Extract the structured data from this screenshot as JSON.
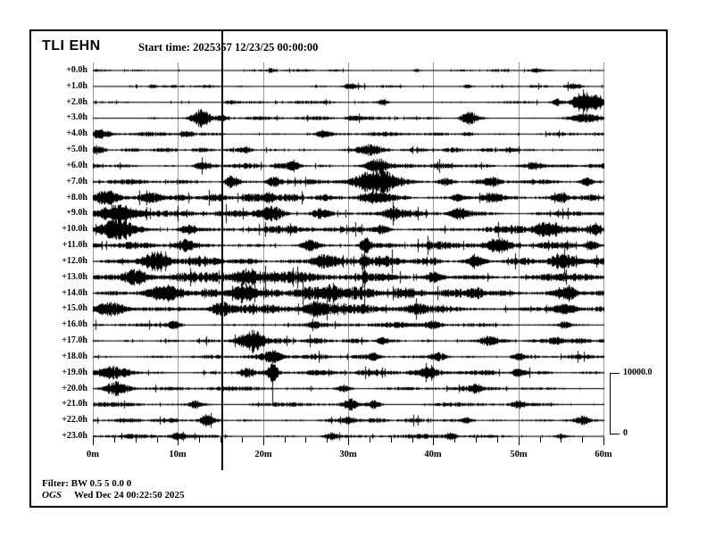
{
  "header": {
    "station": "TLI EHN",
    "start_time": "Start time: 2025357 12/23/25 00:00:00"
  },
  "footer": {
    "filter": "Filter: BW 0.5 5 0.0 0",
    "agency": "OGS",
    "timestamp": "Wed Dec 24 00:22:50 2025"
  },
  "scale_bar": {
    "max": "10000.0",
    "min": "0"
  },
  "colors": {
    "trace": "#000000",
    "grid": "#9a9a9a",
    "marker": "#000000"
  },
  "chart_data": {
    "type": "line",
    "title": "TLI EHN helicorder (24 hourly traces)",
    "x_axis": {
      "ticks": [
        "0m",
        "10m",
        "20m",
        "30m",
        "40m",
        "50m",
        "60m"
      ],
      "tick_minutes": [
        0,
        10,
        20,
        30,
        40,
        50,
        60
      ],
      "minor_tick_step_minutes": 2.5,
      "range_minutes": [
        0,
        60
      ]
    },
    "y_axis": {
      "hours_per_row": 1,
      "rows_total": 24
    },
    "marker_line_minutes": 15.1,
    "amplitude_scale": {
      "max": 10000.0,
      "min": 0
    },
    "rows": [
      {
        "label": "+0.0h",
        "base": 1.0,
        "events": [
          {
            "t": 21,
            "w": 0.3,
            "a": 1.5
          },
          {
            "t": 38,
            "w": 0.3,
            "a": 1.2
          },
          {
            "t": 52,
            "w": 0.4,
            "a": 1.2
          }
        ]
      },
      {
        "label": "+1.0h",
        "base": 1.1,
        "events": [
          {
            "t": 7,
            "w": 0.3,
            "a": 1.5
          },
          {
            "t": 30,
            "w": 0.4,
            "a": 1.5
          },
          {
            "t": 44,
            "w": 0.3,
            "a": 1.5
          },
          {
            "t": 56.5,
            "w": 0.6,
            "a": 2
          }
        ]
      },
      {
        "label": "+2.0h",
        "base": 1.2,
        "events": [
          {
            "t": 16,
            "w": 0.5,
            "a": 1.5
          },
          {
            "t": 34,
            "w": 0.4,
            "a": 2
          },
          {
            "t": 54.5,
            "w": 0.4,
            "a": 2.5
          },
          {
            "t": 57.5,
            "w": 0.7,
            "a": 10
          },
          {
            "t": 59.3,
            "w": 0.5,
            "a": 7
          }
        ]
      },
      {
        "label": "+3.0h",
        "base": 1.4,
        "events": [
          {
            "t": 12.7,
            "w": 0.8,
            "a": 7
          },
          {
            "t": 15.2,
            "w": 0.4,
            "a": 2.5
          },
          {
            "t": 30.5,
            "w": 0.5,
            "a": 2
          },
          {
            "t": 44.2,
            "w": 0.7,
            "a": 5
          },
          {
            "t": 57.8,
            "w": 1.5,
            "a": 3.5
          }
        ]
      },
      {
        "label": "+4.0h",
        "base": 1.7,
        "events": [
          {
            "t": 0.8,
            "w": 0.8,
            "a": 3
          },
          {
            "t": 11,
            "w": 0.5,
            "a": 2.5
          },
          {
            "t": 27,
            "w": 0.5,
            "a": 2
          },
          {
            "t": 44,
            "w": 0.5,
            "a": 2
          }
        ]
      },
      {
        "label": "+5.0h",
        "base": 1.7,
        "events": [
          {
            "t": 0.5,
            "w": 0.6,
            "a": 3
          },
          {
            "t": 18,
            "w": 0.5,
            "a": 2
          },
          {
            "t": 32.3,
            "w": 1.0,
            "a": 4.5
          },
          {
            "t": 49,
            "w": 0.5,
            "a": 2
          }
        ]
      },
      {
        "label": "+6.0h",
        "base": 2.1,
        "events": [
          {
            "t": 12.8,
            "w": 0.6,
            "a": 3
          },
          {
            "t": 23.5,
            "w": 0.6,
            "a": 3
          },
          {
            "t": 33.4,
            "w": 0.9,
            "a": 6
          },
          {
            "t": 52,
            "w": 0.9,
            "a": 3
          }
        ]
      },
      {
        "label": "+7.0h",
        "base": 2.1,
        "events": [
          {
            "t": 16.3,
            "w": 0.6,
            "a": 5
          },
          {
            "t": 21.3,
            "w": 0.6,
            "a": 4
          },
          {
            "t": 33.6,
            "w": 1.8,
            "a": 10
          },
          {
            "t": 41.5,
            "w": 0.6,
            "a": 3.5
          },
          {
            "t": 46.8,
            "w": 0.6,
            "a": 3.5
          },
          {
            "t": 58,
            "w": 0.5,
            "a": 3
          }
        ]
      },
      {
        "label": "+8.0h",
        "base": 2.9,
        "events": [
          {
            "t": 1.5,
            "w": 1.2,
            "a": 5
          },
          {
            "t": 7,
            "w": 0.8,
            "a": 4
          },
          {
            "t": 20.8,
            "w": 0.6,
            "a": 3.5
          },
          {
            "t": 33.6,
            "w": 1.2,
            "a": 5
          },
          {
            "t": 43,
            "w": 0.6,
            "a": 3
          },
          {
            "t": 47,
            "w": 0.9,
            "a": 4
          },
          {
            "t": 55,
            "w": 0.6,
            "a": 3.5
          }
        ]
      },
      {
        "label": "+9.0h",
        "base": 2.9,
        "events": [
          {
            "t": 3,
            "w": 1.6,
            "a": 8
          },
          {
            "t": 21,
            "w": 1.0,
            "a": 6
          },
          {
            "t": 26.8,
            "w": 0.7,
            "a": 4
          },
          {
            "t": 35,
            "w": 0.5,
            "a": 3
          },
          {
            "t": 43,
            "w": 0.7,
            "a": 4
          }
        ]
      },
      {
        "label": "+10.0h",
        "base": 3.1,
        "events": [
          {
            "t": 2.8,
            "w": 1.4,
            "a": 7
          },
          {
            "t": 11.2,
            "w": 0.7,
            "a": 4
          },
          {
            "t": 34,
            "w": 0.6,
            "a": 3.5
          },
          {
            "t": 53.5,
            "w": 1.0,
            "a": 6
          },
          {
            "t": 59,
            "w": 0.5,
            "a": 4
          }
        ]
      },
      {
        "label": "+11.0h",
        "base": 3.1,
        "events": [
          {
            "t": 10.8,
            "w": 0.7,
            "a": 4
          },
          {
            "t": 25.5,
            "w": 0.7,
            "a": 4
          },
          {
            "t": 32,
            "w": 0.4,
            "a": 6
          },
          {
            "t": 47.5,
            "w": 0.7,
            "a": 4
          },
          {
            "t": 58.5,
            "w": 0.5,
            "a": 4
          }
        ]
      },
      {
        "label": "+12.0h",
        "base": 4.0,
        "events": [
          {
            "t": 7,
            "w": 1.2,
            "a": 5
          },
          {
            "t": 27,
            "w": 0.9,
            "a": 5
          },
          {
            "t": 32,
            "w": 0.3,
            "a": 6
          },
          {
            "t": 45,
            "w": 0.7,
            "a": 4
          },
          {
            "t": 55,
            "w": 0.7,
            "a": 4
          }
        ]
      },
      {
        "label": "+13.0h",
        "base": 4.6,
        "events": [
          {
            "t": 5,
            "w": 1.0,
            "a": 6
          },
          {
            "t": 18,
            "w": 0.9,
            "a": 5
          },
          {
            "t": 31.9,
            "w": 0.15,
            "a": 6,
            "tu": 42,
            "td": 40
          },
          {
            "t": 40,
            "w": 0.7,
            "a": 4
          }
        ]
      },
      {
        "label": "+14.0h",
        "base": 4.8,
        "events": [
          {
            "t": 8.5,
            "w": 1.5,
            "a": 6
          },
          {
            "t": 17.5,
            "w": 0.9,
            "a": 6
          },
          {
            "t": 28,
            "w": 0.8,
            "a": 5
          },
          {
            "t": 45,
            "w": 0.7,
            "a": 4
          },
          {
            "t": 55.8,
            "w": 0.9,
            "a": 5
          }
        ]
      },
      {
        "label": "+15.0h",
        "base": 4.2,
        "events": [
          {
            "t": 2,
            "w": 1.2,
            "a": 6
          },
          {
            "t": 15,
            "w": 0.8,
            "a": 5
          },
          {
            "t": 26,
            "w": 0.8,
            "a": 5
          },
          {
            "t": 38,
            "w": 0.7,
            "a": 4
          },
          {
            "t": 55.5,
            "w": 1.0,
            "a": 4
          }
        ]
      },
      {
        "label": "+16.0h",
        "base": 2.1,
        "events": [
          {
            "t": 9.5,
            "w": 0.6,
            "a": 3
          },
          {
            "t": 26,
            "w": 0.5,
            "a": 2.5
          },
          {
            "t": 40,
            "w": 0.6,
            "a": 3
          },
          {
            "t": 55.5,
            "w": 0.5,
            "a": 2.5
          }
        ]
      },
      {
        "label": "+17.0h",
        "base": 2.1,
        "events": [
          {
            "t": 18.8,
            "w": 1.0,
            "a": 8,
            "td": 14
          },
          {
            "t": 34,
            "w": 0.5,
            "a": 2.5
          },
          {
            "t": 46.5,
            "w": 0.8,
            "a": 4
          },
          {
            "t": 54.5,
            "w": 0.6,
            "a": 3
          }
        ]
      },
      {
        "label": "+18.0h",
        "base": 2.1,
        "events": [
          {
            "t": 21.2,
            "w": 0.7,
            "a": 5
          },
          {
            "t": 33,
            "w": 0.5,
            "a": 3
          },
          {
            "t": 40.5,
            "w": 0.7,
            "a": 3.5
          },
          {
            "t": 50,
            "w": 0.5,
            "a": 3
          }
        ]
      },
      {
        "label": "+19.0h",
        "base": 2.4,
        "events": [
          {
            "t": 2.5,
            "w": 1.4,
            "a": 5
          },
          {
            "t": 18,
            "w": 0.6,
            "a": 3.5
          },
          {
            "t": 21.1,
            "w": 0.4,
            "a": 8,
            "td": 36
          },
          {
            "t": 39.5,
            "w": 0.6,
            "a": 3
          },
          {
            "t": 50,
            "w": 0.5,
            "a": 3
          }
        ]
      },
      {
        "label": "+20.0h",
        "base": 1.8,
        "events": [
          {
            "t": 2.8,
            "w": 1.0,
            "a": 6
          },
          {
            "t": 29.5,
            "w": 0.6,
            "a": 3
          },
          {
            "t": 45,
            "w": 0.5,
            "a": 2.5
          }
        ]
      },
      {
        "label": "+21.0h",
        "base": 1.8,
        "events": [
          {
            "t": 12,
            "w": 0.6,
            "a": 3
          },
          {
            "t": 30.2,
            "w": 0.6,
            "a": 4
          },
          {
            "t": 33,
            "w": 0.5,
            "a": 3
          },
          {
            "t": 50,
            "w": 0.5,
            "a": 2.5
          }
        ]
      },
      {
        "label": "+22.0h",
        "base": 1.8,
        "events": [
          {
            "t": 13.5,
            "w": 0.6,
            "a": 4
          },
          {
            "t": 30,
            "w": 0.6,
            "a": 3
          },
          {
            "t": 44,
            "w": 0.5,
            "a": 2.5
          },
          {
            "t": 57.5,
            "w": 0.5,
            "a": 3
          }
        ]
      },
      {
        "label": "+23.0h",
        "base": 1.7,
        "events": [
          {
            "t": 10,
            "w": 0.6,
            "a": 3
          },
          {
            "t": 28,
            "w": 0.6,
            "a": 3
          },
          {
            "t": 42,
            "w": 0.5,
            "a": 2.5
          },
          {
            "t": 55,
            "w": 0.4,
            "a": 2
          }
        ]
      }
    ]
  }
}
